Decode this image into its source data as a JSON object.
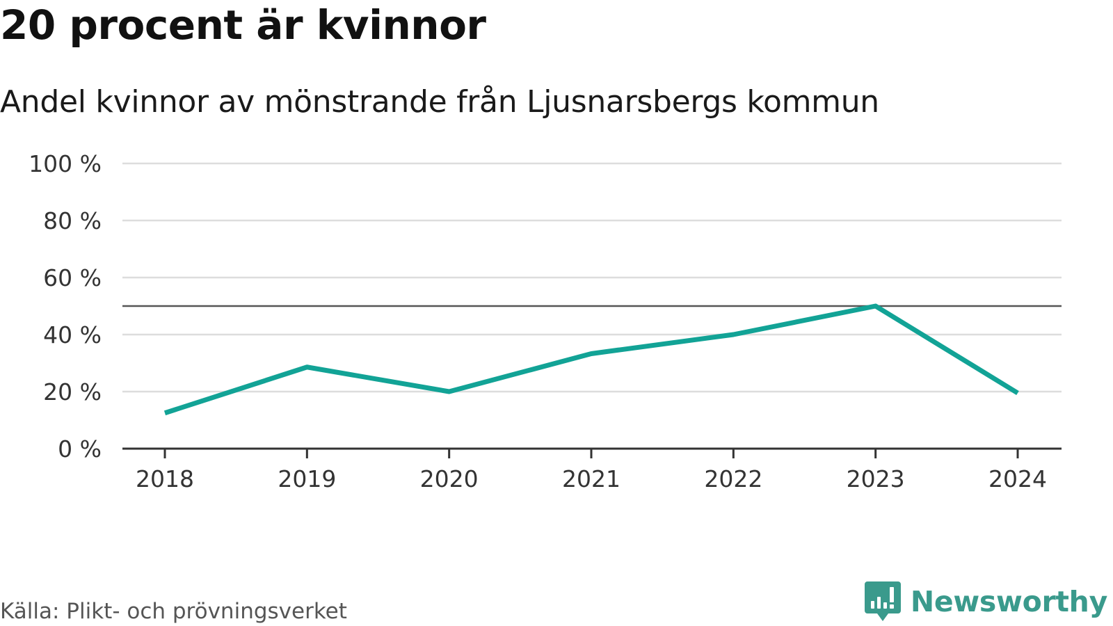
{
  "title": "20 procent är kvinnor",
  "subtitle": "Andel kvinnor av mönstrande från Ljusnarsbergs kommun",
  "source": "Källa: Plikt- och prövningsverket",
  "brand": {
    "name": "Newsworthy",
    "icon": "chat-bar-chart-icon",
    "color": "#3a9a8c"
  },
  "colors": {
    "series": "#12a396",
    "grid": "#dddddd",
    "reference": "#555555",
    "axis": "#333333",
    "tick_text": "#333333"
  },
  "chart_data": {
    "type": "line",
    "title": "20 procent är kvinnor",
    "subtitle": "Andel kvinnor av mönstrande från Ljusnarsbergs kommun",
    "xlabel": "",
    "ylabel": "",
    "categories": [
      "2018",
      "2019",
      "2020",
      "2021",
      "2022",
      "2023",
      "2024"
    ],
    "series": [
      {
        "name": "Andel kvinnor",
        "values": [
          12.5,
          28.6,
          20,
          33.3,
          40,
          50,
          19.5
        ]
      }
    ],
    "ylim": [
      0,
      100
    ],
    "y_ticks": [
      0,
      20,
      40,
      60,
      80,
      100
    ],
    "y_tick_labels": [
      "0 %",
      "20 %",
      "40 %",
      "60 %",
      "80 %",
      "100 %"
    ],
    "reference_line": 50,
    "grid": true,
    "legend": "none"
  }
}
